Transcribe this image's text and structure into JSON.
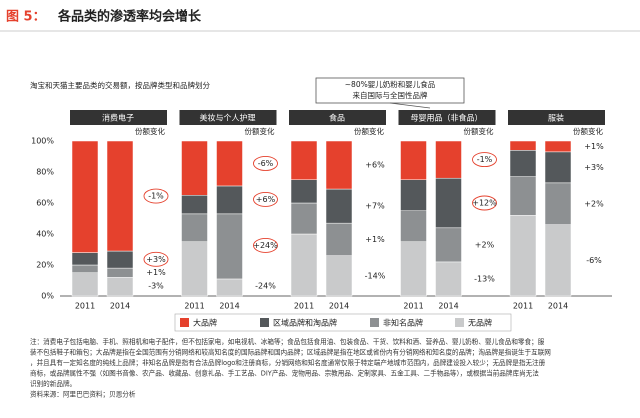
{
  "chart_data": {
    "type": "bar",
    "stacked": true,
    "figure_label": "图 5：",
    "title": "各品类的渗透率均会增长",
    "subtitle": "淘宝和天猫主要品类的交易额，按品牌类型和品牌划分",
    "callout": [
      "~80%婴儿奶粉和婴儿食品",
      "来自国际与全国性品牌"
    ],
    "categories": [
      "2011",
      "2014",
      "2011",
      "2014",
      "2011",
      "2014",
      "2011",
      "2014",
      "2011",
      "2014"
    ],
    "panels": [
      {
        "title": "消费电子",
        "change_header": "份额变化",
        "changes": [
          "-1%",
          "+3%",
          "+1%",
          "-3%"
        ],
        "circled": [
          true,
          true,
          false,
          false
        ]
      },
      {
        "title": "美妆与个人护理",
        "change_header": "份额变化",
        "changes": [
          "-6%",
          "+6%",
          "+24%",
          "-24%"
        ],
        "circled": [
          true,
          true,
          true,
          false
        ]
      },
      {
        "title": "食品",
        "change_header": "份额变化",
        "changes": [
          "+6%",
          "+7%",
          "+1%",
          "-14%"
        ],
        "circled": [
          false,
          false,
          false,
          false
        ]
      },
      {
        "title": "母婴用品（非食品）",
        "change_header": "份额变化",
        "changes": [
          "-1%",
          "+12%",
          "+2%",
          "-13%"
        ],
        "circled": [
          true,
          true,
          false,
          false
        ]
      },
      {
        "title": "服装",
        "change_header": "份额变化",
        "changes": [
          "+1%",
          "+3%",
          "+2%",
          "-6%"
        ],
        "circled": [
          false,
          false,
          false,
          false
        ]
      }
    ],
    "series": [
      {
        "name": "大品牌",
        "color": "#e5412d",
        "values": [
          72,
          71,
          35,
          29,
          25,
          31,
          25,
          24,
          6,
          7
        ]
      },
      {
        "name": "区域品牌和淘品牌",
        "color": "#54585b",
        "values": [
          8,
          11,
          12,
          18,
          15,
          22,
          20,
          32,
          17,
          20
        ]
      },
      {
        "name": "非知名品牌",
        "color": "#8d9092",
        "values": [
          5,
          6,
          18,
          42,
          20,
          21,
          20,
          22,
          25,
          27
        ]
      },
      {
        "name": "无品牌",
        "color": "#c9cacb",
        "values": [
          15,
          12,
          35,
          11,
          40,
          26,
          35,
          22,
          52,
          46
        ]
      }
    ],
    "ylim": [
      0,
      100
    ],
    "yticks": [
      {
        "value": 0,
        "label": "0%"
      },
      {
        "value": 20,
        "label": "20%"
      },
      {
        "value": 40,
        "label": "40%"
      },
      {
        "value": 60,
        "label": "60%"
      },
      {
        "value": 80,
        "label": "80%"
      },
      {
        "value": 100,
        "label": "100%"
      }
    ],
    "notes": [
      "注：消费电子包括电脑、手机、照相机和电子配件，但不包括家电，如电视机、冰箱等；食品包括食用油、包装食品、干货、饮料和酒、营养品、婴儿奶粉、婴儿食品和零食；服",
      "装不包括鞋子和箱包；大品牌是指在全国范围有分销网络和较高知名度的国际品牌和国内品牌；区域品牌是指在地区或省份内有分销网络和知名度的品牌；淘品牌是指诞生于互联网",
      "，并且具有一定知名度的纯线上品牌；非知名品牌是指有合法品牌logo和注册商标，分销网络和知名度通常仅限于特定端产地城市范围内，品牌建设投入较少；无品牌是指无注册",
      "商标，或品牌属性不强（如图书音像、农产品、收藏品、创意礼品、手工艺品、DIY产品、宠物用品、宗教用品、定制家具、五金工具、二手物品等），或根据当前品牌库尚无法",
      "识别的新品牌。"
    ],
    "source": "资料来源：阿里巴巴资料；贝恩分析"
  }
}
